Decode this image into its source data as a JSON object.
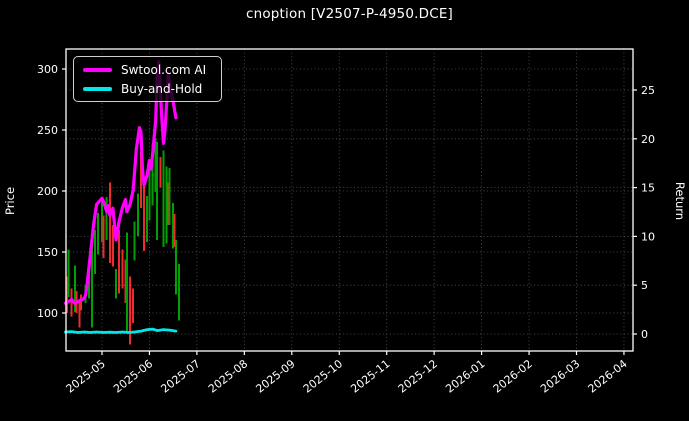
{
  "title": "cnoption [V2507-P-4950.DCE]",
  "colors": {
    "background": "#000000",
    "spine": "#ffffff",
    "grid": "#6a6a6a",
    "text": "#ffffff",
    "ai_line": "#ff00ff",
    "buyhold_line": "#00e8e8",
    "candle_up": "#00a000",
    "candle_down": "#ee2c2c"
  },
  "legend": {
    "items": [
      {
        "label": "Swtool.com AI",
        "color": "#ff00ff"
      },
      {
        "label": "Buy-and-Hold",
        "color": "#00e8e8"
      }
    ]
  },
  "chart_data": {
    "type": "line",
    "subtype": "price-candles-with-return-lines",
    "title": "cnoption [V2507-P-4950.DCE]",
    "grid": "dotted-both-axes",
    "legend_position": "upper-left",
    "x_axis": {
      "tick_labels": [
        "2025-05",
        "2025-06",
        "2025-07",
        "2025-08",
        "2025-09",
        "2025-10",
        "2025-11",
        "2025-12",
        "2026-01",
        "2026-02",
        "2026-03",
        "2026-04"
      ],
      "tick_rotation_deg": 38,
      "data_range": [
        "2025-04-08",
        "2025-06-20"
      ]
    },
    "left_axis": {
      "label": "Price",
      "ticks": [
        100,
        150,
        200,
        250,
        300
      ],
      "range": [
        69,
        318
      ]
    },
    "right_axis": {
      "label": "Return",
      "ticks": [
        0,
        5,
        10,
        15,
        20,
        25
      ],
      "range": [
        -1.8,
        29
      ]
    },
    "series": [
      {
        "name": "Swtool.com AI",
        "type": "line",
        "axis": "left",
        "color": "#ff00ff",
        "width": 3.2,
        "points": [
          [
            "2025-04-08",
            108
          ],
          [
            "2025-04-12",
            111
          ],
          [
            "2025-04-14",
            108
          ],
          [
            "2025-04-17",
            110
          ],
          [
            "2025-04-20",
            112
          ],
          [
            "2025-04-21",
            115
          ],
          [
            "2025-04-22",
            125
          ],
          [
            "2025-04-24",
            148
          ],
          [
            "2025-04-26",
            172
          ],
          [
            "2025-04-28",
            189
          ],
          [
            "2025-05-01",
            194
          ],
          [
            "2025-05-02",
            191
          ],
          [
            "2025-05-04",
            183
          ],
          [
            "2025-05-05",
            188
          ],
          [
            "2025-05-06",
            180
          ],
          [
            "2025-05-08",
            186
          ],
          [
            "2025-05-10",
            160
          ],
          [
            "2025-05-12",
            175
          ],
          [
            "2025-05-14",
            186
          ],
          [
            "2025-05-16",
            193
          ],
          [
            "2025-05-17",
            183
          ],
          [
            "2025-05-19",
            189
          ],
          [
            "2025-05-21",
            201
          ],
          [
            "2025-05-23",
            234
          ],
          [
            "2025-05-25",
            252
          ],
          [
            "2025-05-26",
            248
          ],
          [
            "2025-05-27",
            217
          ],
          [
            "2025-05-28",
            205
          ],
          [
            "2025-05-30",
            213
          ],
          [
            "2025-06-01",
            225
          ],
          [
            "2025-06-02",
            218
          ],
          [
            "2025-06-03",
            230
          ],
          [
            "2025-06-05",
            258
          ],
          [
            "2025-06-06",
            295
          ],
          [
            "2025-06-07",
            306
          ],
          [
            "2025-06-09",
            258
          ],
          [
            "2025-06-10",
            239
          ],
          [
            "2025-06-11",
            250
          ],
          [
            "2025-06-12",
            271
          ],
          [
            "2025-06-13",
            296
          ],
          [
            "2025-06-14",
            288
          ],
          [
            "2025-06-16",
            275
          ],
          [
            "2025-06-18",
            260
          ]
        ]
      },
      {
        "name": "Buy-and-Hold",
        "type": "line",
        "axis": "right",
        "color": "#00e8e8",
        "width": 2.8,
        "points": [
          [
            "2025-04-08",
            0.2
          ],
          [
            "2025-04-12",
            0.25
          ],
          [
            "2025-04-16",
            0.15
          ],
          [
            "2025-04-20",
            0.2
          ],
          [
            "2025-04-24",
            0.15
          ],
          [
            "2025-04-28",
            0.2
          ],
          [
            "2025-05-02",
            0.15
          ],
          [
            "2025-05-06",
            0.18
          ],
          [
            "2025-05-10",
            0.15
          ],
          [
            "2025-05-14",
            0.2
          ],
          [
            "2025-05-18",
            0.15
          ],
          [
            "2025-05-22",
            0.2
          ],
          [
            "2025-05-26",
            0.3
          ],
          [
            "2025-05-30",
            0.45
          ],
          [
            "2025-06-03",
            0.5
          ],
          [
            "2025-06-06",
            0.35
          ],
          [
            "2025-06-10",
            0.45
          ],
          [
            "2025-06-14",
            0.4
          ],
          [
            "2025-06-18",
            0.3
          ]
        ]
      },
      {
        "name": "price-range-candles",
        "type": "candlestick-high-low",
        "axis": "left",
        "up_color": "#00a000",
        "down_color": "#ee2c2c",
        "bars": [
          [
            "2025-04-09",
            130,
            100,
            "down"
          ],
          [
            "2025-04-10",
            152,
            113,
            "up"
          ],
          [
            "2025-04-12",
            120,
            97,
            "down"
          ],
          [
            "2025-04-14",
            139,
            101,
            "up"
          ],
          [
            "2025-04-15",
            118,
            100,
            "down"
          ],
          [
            "2025-04-17",
            110,
            88,
            "down"
          ],
          [
            "2025-04-18",
            115,
            102,
            "down"
          ],
          [
            "2025-04-21",
            122,
            108,
            "up"
          ],
          [
            "2025-04-23",
            135,
            112,
            "up"
          ],
          [
            "2025-04-25",
            160,
            88,
            "up"
          ],
          [
            "2025-04-27",
            168,
            132,
            "up"
          ],
          [
            "2025-04-29",
            182,
            148,
            "up"
          ],
          [
            "2025-05-01",
            192,
            158,
            "up"
          ],
          [
            "2025-05-02",
            180,
            145,
            "down"
          ],
          [
            "2025-05-04",
            195,
            160,
            "up"
          ],
          [
            "2025-05-06",
            207,
            141,
            "down"
          ],
          [
            "2025-05-08",
            172,
            138,
            "down"
          ],
          [
            "2025-05-10",
            136,
            112,
            "up"
          ],
          [
            "2025-05-12",
            168,
            116,
            "down"
          ],
          [
            "2025-05-14",
            152,
            120,
            "down"
          ],
          [
            "2025-05-16",
            144,
            108,
            "down"
          ],
          [
            "2025-05-17",
            166,
            84,
            "up"
          ],
          [
            "2025-05-19",
            130,
            74,
            "down"
          ],
          [
            "2025-05-21",
            120,
            92,
            "down"
          ],
          [
            "2025-05-22",
            175,
            143,
            "up"
          ],
          [
            "2025-05-24",
            198,
            163,
            "up"
          ],
          [
            "2025-05-26",
            232,
            186,
            "down"
          ],
          [
            "2025-05-28",
            205,
            151,
            "down"
          ],
          [
            "2025-05-30",
            196,
            158,
            "up"
          ],
          [
            "2025-06-01",
            218,
            176,
            "up"
          ],
          [
            "2025-06-03",
            238,
            188,
            "up"
          ],
          [
            "2025-06-05",
            243,
            199,
            "up"
          ],
          [
            "2025-06-06",
            240,
            160,
            "up"
          ],
          [
            "2025-06-08",
            228,
            203,
            "down"
          ],
          [
            "2025-06-10",
            233,
            154,
            "up"
          ],
          [
            "2025-06-12",
            220,
            157,
            "up"
          ],
          [
            "2025-06-13",
            207,
            172,
            "down"
          ],
          [
            "2025-06-14",
            219,
            172,
            "up"
          ],
          [
            "2025-06-16",
            190,
            153,
            "up"
          ],
          [
            "2025-06-17",
            181,
            154,
            "down"
          ],
          [
            "2025-06-18",
            160,
            115,
            "up"
          ],
          [
            "2025-06-20",
            140,
            94,
            "up"
          ]
        ]
      }
    ]
  }
}
